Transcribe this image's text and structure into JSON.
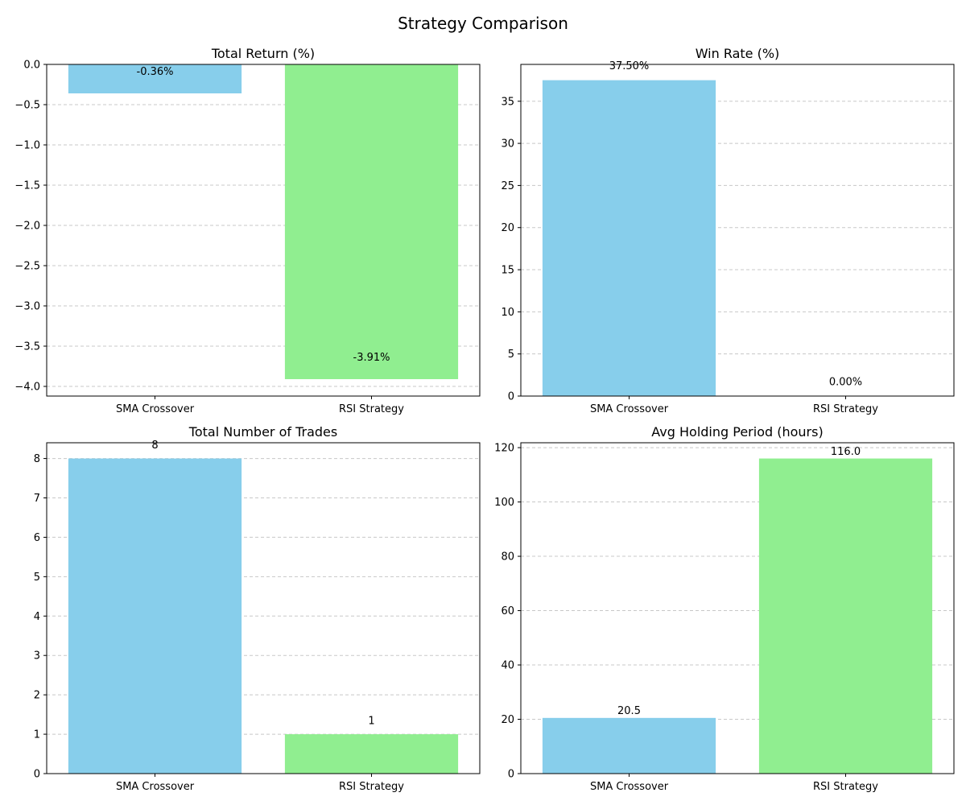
{
  "figure_title": "Strategy Comparison",
  "colors": {
    "sma": "#87CEEB",
    "rsi": "#90EE90",
    "grid": "#c8c8c8",
    "axis": "#000000"
  },
  "chart_data": [
    {
      "type": "bar",
      "title": "Total Return (%)",
      "categories": [
        "SMA Crossover",
        "RSI Strategy"
      ],
      "values": [
        -0.36,
        -3.91
      ],
      "value_labels": [
        "-0.36%",
        "-3.91%"
      ],
      "ylim": [
        -4.12,
        0.0
      ],
      "yticks": [
        0.0,
        -0.5,
        -1.0,
        -1.5,
        -2.0,
        -2.5,
        -3.0,
        -3.5,
        -4.0
      ],
      "ytick_labels": [
        "0.0",
        "−0.5",
        "−1.0",
        "−1.5",
        "−2.0",
        "−2.5",
        "−3.0",
        "−3.5",
        "−4.0"
      ],
      "grid": "y-dashed",
      "label_offset": 0.2
    },
    {
      "type": "bar",
      "title": "Win Rate (%)",
      "categories": [
        "SMA Crossover",
        "RSI Strategy"
      ],
      "values": [
        37.5,
        0.0
      ],
      "value_labels": [
        "37.50%",
        "0.00%"
      ],
      "ylim": [
        0,
        39.375
      ],
      "yticks": [
        0,
        5,
        10,
        15,
        20,
        25,
        30,
        35
      ],
      "ytick_labels": [
        "0",
        "5",
        "10",
        "15",
        "20",
        "25",
        "30",
        "35"
      ],
      "grid": "y-dashed",
      "label_offset": 1.0
    },
    {
      "type": "bar",
      "title": "Total Number of Trades",
      "categories": [
        "SMA Crossover",
        "RSI Strategy"
      ],
      "values": [
        8,
        1
      ],
      "value_labels": [
        "8",
        "1"
      ],
      "ylim": [
        0,
        8.4
      ],
      "yticks": [
        0,
        1,
        2,
        3,
        4,
        5,
        6,
        7,
        8
      ],
      "ytick_labels": [
        "0",
        "1",
        "2",
        "3",
        "4",
        "5",
        "6",
        "7",
        "8"
      ],
      "grid": "y-dashed",
      "label_offset": 0.2
    },
    {
      "type": "bar",
      "title": "Avg Holding Period (hours)",
      "categories": [
        "SMA Crossover",
        "RSI Strategy"
      ],
      "values": [
        20.5,
        116.0
      ],
      "value_labels": [
        "20.5",
        "116.0"
      ],
      "ylim": [
        0,
        121.8
      ],
      "yticks": [
        0,
        20,
        40,
        60,
        80,
        100,
        120
      ],
      "ytick_labels": [
        "0",
        "20",
        "40",
        "60",
        "80",
        "100",
        "120"
      ],
      "grid": "y-dashed",
      "label_offset": 0.5
    }
  ]
}
